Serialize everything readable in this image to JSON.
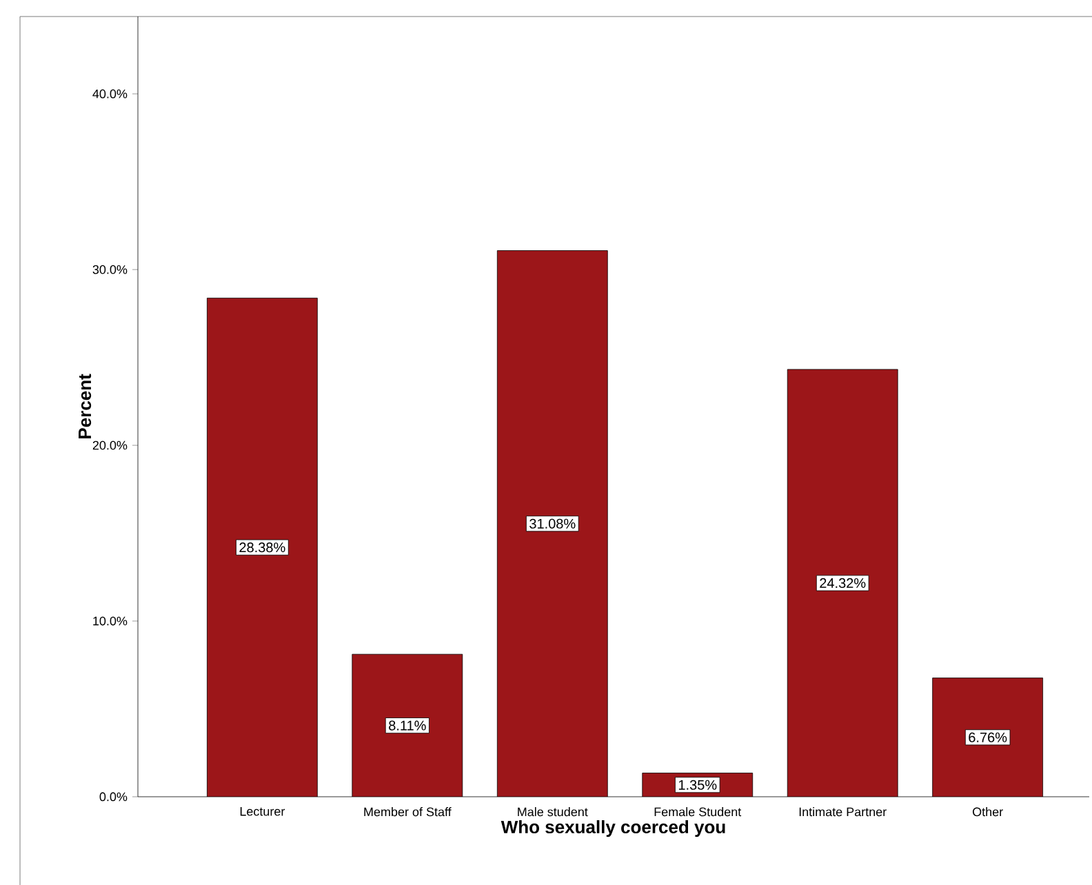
{
  "chart_data": {
    "type": "bar",
    "xlabel": "Who sexually coerced you",
    "ylabel": "Percent",
    "categories": [
      "Lecturer",
      "Member of Staff",
      "Male student",
      "Female Student",
      "Intimate Partner",
      "Other"
    ],
    "values": [
      28.38,
      8.11,
      31.08,
      1.35,
      24.32,
      6.76
    ],
    "value_labels": [
      "28.38%",
      "8.11%",
      "31.08%",
      "1.35%",
      "24.32%",
      "6.76%"
    ],
    "color": "#9c1619",
    "ylim": [
      0,
      44.4
    ],
    "yticks": [
      {
        "value": 0,
        "label": "0.0%"
      },
      {
        "value": 10,
        "label": "10.0%"
      },
      {
        "value": 20,
        "label": "20.0%"
      },
      {
        "value": 30,
        "label": "30.0%"
      },
      {
        "value": 40,
        "label": "40.0%"
      }
    ],
    "grid": false
  }
}
